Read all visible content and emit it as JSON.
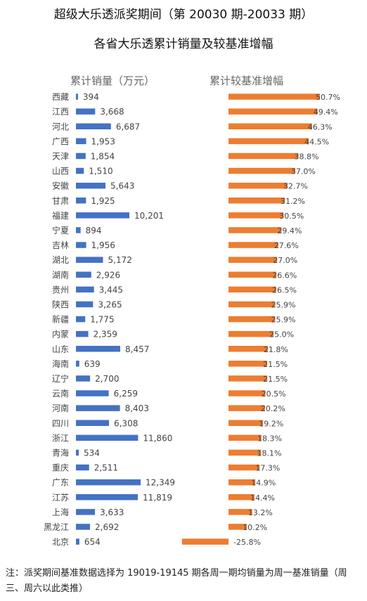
{
  "header": {
    "title": "超级大乐透派奖期间（第 20030 期-20033 期）",
    "subtitle": "各省大乐透累计销量及较基准增幅"
  },
  "footnote": "注：派奖期间基准数据选择为 19019-19145 期各周一期均销量为周一基准销量（周三、周六以此类推）",
  "colors": {
    "sales_bar": "#4472C4",
    "growth_bar": "#ED7D31"
  },
  "chart_data": [
    {
      "type": "bar",
      "orientation": "horizontal",
      "title": "累计销量（万元）",
      "categories": [
        "西藏",
        "江西",
        "河北",
        "广西",
        "天津",
        "山西",
        "安徽",
        "甘肃",
        "福建",
        "宁夏",
        "吉林",
        "湖北",
        "湖南",
        "贵州",
        "陕西",
        "新疆",
        "内蒙",
        "山东",
        "海南",
        "辽宁",
        "云南",
        "河南",
        "四川",
        "浙江",
        "青海",
        "重庆",
        "广东",
        "江苏",
        "上海",
        "黑龙江",
        "北京"
      ],
      "values": [
        394,
        3668,
        6687,
        1953,
        1854,
        1510,
        5643,
        1925,
        10201,
        894,
        1956,
        5172,
        2926,
        3445,
        3265,
        1775,
        2359,
        8457,
        639,
        2700,
        6259,
        8403,
        6308,
        11860,
        534,
        2511,
        12349,
        11819,
        3633,
        2692,
        654
      ],
      "labels": [
        "394",
        "3,668",
        "6,687",
        "1,953",
        "1,854",
        "1,510",
        "5,643",
        "1,925",
        "10,201",
        "894",
        "1,956",
        "5,172",
        "2,926",
        "3,445",
        "3,265",
        "1,775",
        "2,359",
        "8,457",
        "639",
        "2,700",
        "6,259",
        "8,403",
        "6,308",
        "11,860",
        "534",
        "2,511",
        "12,349",
        "11,819",
        "3,633",
        "2,692",
        "654"
      ]
    },
    {
      "type": "bar",
      "orientation": "horizontal",
      "title": "累计较基准增幅",
      "categories": [
        "西藏",
        "江西",
        "河北",
        "广西",
        "天津",
        "山西",
        "安徽",
        "甘肃",
        "福建",
        "宁夏",
        "吉林",
        "湖北",
        "湖南",
        "贵州",
        "陕西",
        "新疆",
        "内蒙",
        "山东",
        "海南",
        "辽宁",
        "云南",
        "河南",
        "四川",
        "浙江",
        "青海",
        "重庆",
        "广东",
        "江苏",
        "上海",
        "黑龙江",
        "北京"
      ],
      "values": [
        50.7,
        49.4,
        46.3,
        44.5,
        38.8,
        37.0,
        32.7,
        31.2,
        30.5,
        29.4,
        27.6,
        27.0,
        26.6,
        26.5,
        25.9,
        25.9,
        25.0,
        21.8,
        21.5,
        21.5,
        20.5,
        20.2,
        19.2,
        18.3,
        18.1,
        17.3,
        14.9,
        14.4,
        13.2,
        10.2,
        -25.8
      ],
      "labels": [
        "50.7%",
        "49.4%",
        "46.3%",
        "44.5%",
        "38.8%",
        "37.0%",
        "32.7%",
        "31.2%",
        "30.5%",
        "29.4%",
        "27.6%",
        "27.0%",
        "26.6%",
        "26.5%",
        "25.9%",
        "25.9%",
        "25.0%",
        "21.8%",
        "21.5%",
        "21.5%",
        "20.5%",
        "20.2%",
        "19.2%",
        "18.3%",
        "18.1%",
        "17.3%",
        "14.9%",
        "14.4%",
        "13.2%",
        "10.2%",
        "-25.8%"
      ],
      "unit": "%"
    }
  ]
}
